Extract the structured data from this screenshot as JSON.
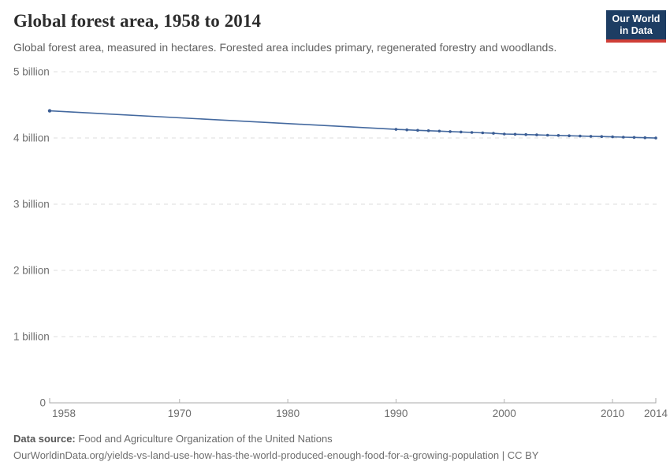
{
  "header": {
    "title": "Global forest area, 1958 to 2014",
    "subtitle": "Global forest area, measured in hectares. Forested area includes primary, regenerated forestry and woodlands.",
    "logo": {
      "line1": "Our World",
      "line2": "in Data",
      "bg_color": "#1d3d63",
      "bar_color": "#cf3e37"
    }
  },
  "chart_data": {
    "type": "line",
    "title": "Global forest area, 1958 to 2014",
    "xlabel": "",
    "ylabel": "",
    "unit": "hectares",
    "grid": "horizontal-dashed",
    "legend_position": "none",
    "x_range": [
      1958,
      2014
    ],
    "y_range_billion": [
      0,
      5
    ],
    "x_ticks": [
      1958,
      1970,
      1980,
      1990,
      2000,
      2010,
      2014
    ],
    "y_ticks": [
      {
        "value": 0,
        "label": "0"
      },
      {
        "value": 1,
        "label": "1 billion"
      },
      {
        "value": 2,
        "label": "2 billion"
      },
      {
        "value": 3,
        "label": "3 billion"
      },
      {
        "value": 4,
        "label": "4 billion"
      },
      {
        "value": 5,
        "label": "5 billion"
      }
    ],
    "series": [
      {
        "name": "Global forest area",
        "color": "#44699f",
        "marker_color": "#3a5c93",
        "values_unit": "billion hectares",
        "points": [
          {
            "year": 1958,
            "value": 4.41
          },
          {
            "year": 1990,
            "value": 4.13
          },
          {
            "year": 1991,
            "value": 4.123
          },
          {
            "year": 1992,
            "value": 4.116
          },
          {
            "year": 1993,
            "value": 4.11
          },
          {
            "year": 1994,
            "value": 4.103
          },
          {
            "year": 1995,
            "value": 4.097
          },
          {
            "year": 1996,
            "value": 4.09
          },
          {
            "year": 1997,
            "value": 4.083
          },
          {
            "year": 1998,
            "value": 4.077
          },
          {
            "year": 1999,
            "value": 4.07
          },
          {
            "year": 2000,
            "value": 4.06
          },
          {
            "year": 2001,
            "value": 4.056
          },
          {
            "year": 2002,
            "value": 4.051
          },
          {
            "year": 2003,
            "value": 4.047
          },
          {
            "year": 2004,
            "value": 4.042
          },
          {
            "year": 2005,
            "value": 4.038
          },
          {
            "year": 2006,
            "value": 4.033
          },
          {
            "year": 2007,
            "value": 4.029
          },
          {
            "year": 2008,
            "value": 4.025
          },
          {
            "year": 2009,
            "value": 4.021
          },
          {
            "year": 2010,
            "value": 4.017
          },
          {
            "year": 2011,
            "value": 4.012
          },
          {
            "year": 2012,
            "value": 4.008
          },
          {
            "year": 2013,
            "value": 4.003
          },
          {
            "year": 2014,
            "value": 3.999
          }
        ]
      }
    ]
  },
  "footer": {
    "source_label": "Data source:",
    "source_value": "Food and Agriculture Organization of the United Nations",
    "citation": "OurWorldinData.org/yields-vs-land-use-how-has-the-world-produced-enough-food-for-a-growing-population | CC BY"
  }
}
